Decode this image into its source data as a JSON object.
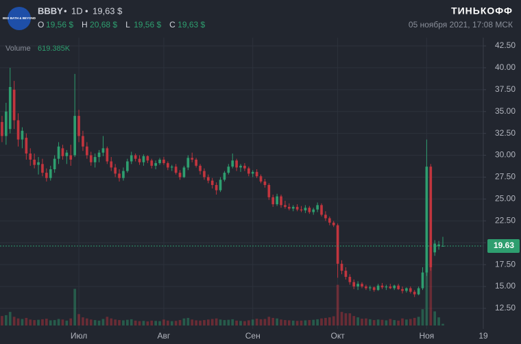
{
  "chart_data": {
    "type": "candlestick",
    "symbol": "BBBY",
    "interval": "1D",
    "last_label": "19,63 $",
    "logo_text": "BED BATH & BEYOND",
    "ohlc_readout": [
      {
        "key": "O",
        "label": "19,56 $"
      },
      {
        "key": "H",
        "label": "20,68 $"
      },
      {
        "key": "L",
        "label": "19,56 $"
      },
      {
        "key": "C",
        "label": "19,63 $"
      }
    ],
    "brand": "ТИНЬКОФФ",
    "timestamp": "05 ноября 2021, 17:08 МСК",
    "volume_name": "Volume",
    "volume_label": "619.385K",
    "up_color": "#2e9e6f",
    "down_color": "#c2353e",
    "last_price": 19.63,
    "xlim": [
      -0.5,
      119
    ],
    "ylim": [
      10.54,
      43.44
    ],
    "vlim": [
      0,
      106000
    ],
    "xticks": [
      {
        "value": 19,
        "label": "Июл"
      },
      {
        "value": 40,
        "label": "Авг"
      },
      {
        "value": 62,
        "label": "Сен"
      },
      {
        "value": 83,
        "label": "Окт"
      },
      {
        "value": 105,
        "label": "Ноя"
      },
      {
        "value": 119,
        "label": "19"
      }
    ],
    "yticks": [
      {
        "value": 12.5,
        "label": "12.50"
      },
      {
        "value": 15,
        "label": "15.00"
      },
      {
        "value": 17.5,
        "label": "17.50"
      },
      {
        "value": 20,
        "label": "20.00"
      },
      {
        "value": 22.5,
        "label": "22.50"
      },
      {
        "value": 25,
        "label": "25.00"
      },
      {
        "value": 27.5,
        "label": "27.50"
      },
      {
        "value": 30,
        "label": "30.00"
      },
      {
        "value": 32.5,
        "label": "32.50"
      },
      {
        "value": 35,
        "label": "35.00"
      },
      {
        "value": 37.5,
        "label": "37.50"
      },
      {
        "value": 40,
        "label": "40.00"
      },
      {
        "value": 42.5,
        "label": "42.50"
      }
    ],
    "grid": true,
    "ohlc": [
      [
        33.8,
        34.5,
        31.5,
        32.2
      ],
      [
        32.2,
        36.0,
        31.2,
        35.0
      ],
      [
        33.0,
        40.0,
        32.5,
        37.8
      ],
      [
        37.5,
        38.5,
        33.0,
        34.0
      ],
      [
        34.0,
        34.8,
        31.0,
        31.8
      ],
      [
        31.8,
        33.2,
        30.8,
        32.8
      ],
      [
        32.0,
        32.5,
        29.5,
        30.2
      ],
      [
        30.2,
        30.8,
        28.8,
        29.5
      ],
      [
        29.5,
        30.2,
        28.5,
        28.9
      ],
      [
        28.9,
        29.8,
        27.8,
        29.2
      ],
      [
        29.0,
        29.6,
        27.6,
        28.0
      ],
      [
        28.0,
        28.5,
        27.0,
        27.4
      ],
      [
        27.4,
        28.8,
        27.1,
        28.4
      ],
      [
        28.4,
        30.0,
        28.0,
        29.6
      ],
      [
        29.6,
        31.5,
        29.0,
        31.0
      ],
      [
        30.8,
        31.2,
        29.5,
        29.9
      ],
      [
        29.9,
        30.6,
        29.0,
        30.3
      ],
      [
        30.0,
        31.2,
        28.8,
        29.5
      ],
      [
        30.0,
        39.3,
        29.8,
        34.5
      ],
      [
        34.5,
        35.2,
        31.5,
        32.2
      ],
      [
        32.2,
        32.8,
        30.5,
        31.0
      ],
      [
        31.0,
        31.5,
        29.6,
        30.0
      ],
      [
        30.0,
        30.4,
        28.8,
        29.2
      ],
      [
        29.2,
        30.2,
        28.6,
        29.8
      ],
      [
        29.8,
        30.6,
        29.2,
        30.3
      ],
      [
        30.3,
        32.2,
        29.9,
        30.8
      ],
      [
        30.8,
        31.0,
        29.0,
        29.3
      ],
      [
        29.3,
        29.8,
        28.2,
        28.6
      ],
      [
        28.6,
        29.0,
        27.5,
        27.9
      ],
      [
        27.9,
        28.4,
        27.0,
        27.4
      ],
      [
        27.4,
        28.6,
        27.1,
        28.2
      ],
      [
        28.2,
        29.6,
        28.0,
        29.3
      ],
      [
        29.3,
        30.4,
        29.0,
        30.0
      ],
      [
        30.0,
        30.2,
        29.3,
        29.6
      ],
      [
        29.6,
        30.0,
        28.9,
        29.2
      ],
      [
        29.2,
        30.1,
        28.8,
        29.9
      ],
      [
        29.9,
        30.0,
        29.1,
        29.4
      ],
      [
        29.4,
        29.6,
        28.5,
        28.8
      ],
      [
        28.8,
        29.4,
        28.4,
        29.1
      ],
      [
        29.1,
        29.7,
        28.9,
        29.5
      ],
      [
        29.5,
        29.8,
        28.9,
        29.1
      ],
      [
        29.1,
        29.3,
        28.3,
        28.6
      ],
      [
        28.6,
        28.9,
        28.2,
        28.7
      ],
      [
        28.7,
        29.0,
        27.8,
        28.0
      ],
      [
        28.0,
        28.3,
        27.2,
        27.5
      ],
      [
        27.5,
        28.8,
        27.4,
        28.6
      ],
      [
        28.6,
        30.0,
        28.3,
        29.7
      ],
      [
        29.7,
        30.3,
        29.2,
        29.5
      ],
      [
        29.5,
        29.7,
        28.6,
        28.8
      ],
      [
        28.8,
        29.0,
        27.8,
        28.2
      ],
      [
        28.2,
        28.5,
        27.2,
        27.5
      ],
      [
        27.5,
        27.8,
        26.8,
        27.1
      ],
      [
        27.1,
        27.4,
        26.2,
        26.6
      ],
      [
        26.6,
        26.9,
        25.5,
        26.0
      ],
      [
        26.0,
        27.5,
        25.8,
        27.2
      ],
      [
        27.2,
        28.2,
        27.0,
        28.0
      ],
      [
        28.0,
        29.0,
        27.8,
        28.7
      ],
      [
        28.7,
        30.2,
        28.5,
        29.4
      ],
      [
        29.4,
        29.6,
        28.2,
        28.6
      ],
      [
        28.6,
        29.0,
        28.1,
        28.8
      ],
      [
        28.8,
        29.1,
        28.2,
        28.5
      ],
      [
        28.5,
        28.7,
        27.6,
        27.9
      ],
      [
        27.9,
        28.3,
        27.5,
        28.1
      ],
      [
        28.1,
        28.4,
        27.4,
        27.6
      ],
      [
        27.6,
        27.8,
        26.8,
        27.0
      ],
      [
        27.0,
        27.3,
        26.3,
        26.6
      ],
      [
        26.6,
        26.8,
        24.9,
        25.2
      ],
      [
        25.2,
        25.5,
        24.1,
        24.4
      ],
      [
        24.4,
        25.6,
        24.2,
        25.3
      ],
      [
        25.3,
        25.5,
        24.0,
        24.3
      ],
      [
        24.3,
        24.8,
        23.9,
        24.1
      ],
      [
        24.1,
        24.5,
        23.7,
        23.9
      ],
      [
        23.9,
        24.3,
        23.6,
        24.1
      ],
      [
        24.1,
        24.4,
        23.6,
        23.8
      ],
      [
        23.8,
        24.2,
        23.5,
        23.7
      ],
      [
        23.7,
        24.3,
        23.4,
        24.0
      ],
      [
        24.0,
        24.2,
        23.3,
        23.5
      ],
      [
        23.5,
        24.0,
        23.2,
        23.8
      ],
      [
        23.8,
        24.6,
        23.5,
        24.3
      ],
      [
        24.3,
        24.5,
        23.0,
        23.2
      ],
      [
        23.2,
        23.6,
        22.5,
        22.8
      ],
      [
        22.8,
        23.0,
        22.0,
        22.3
      ],
      [
        22.3,
        22.5,
        21.8,
        22.0
      ],
      [
        22.0,
        22.2,
        16.0,
        17.6
      ],
      [
        17.6,
        18.0,
        16.4,
        16.8
      ],
      [
        16.8,
        17.2,
        15.8,
        16.1
      ],
      [
        16.1,
        16.4,
        15.2,
        15.5
      ],
      [
        15.5,
        15.8,
        14.7,
        15.0
      ],
      [
        15.0,
        15.6,
        14.6,
        15.3
      ],
      [
        15.3,
        15.5,
        14.8,
        15.0
      ],
      [
        15.0,
        15.2,
        14.6,
        14.8
      ],
      [
        14.8,
        15.1,
        14.5,
        14.9
      ],
      [
        14.9,
        15.0,
        14.4,
        14.6
      ],
      [
        14.6,
        15.3,
        14.5,
        15.1
      ],
      [
        15.1,
        15.4,
        14.7,
        14.9
      ],
      [
        14.9,
        15.2,
        14.6,
        15.0
      ],
      [
        15.0,
        15.3,
        14.7,
        14.8
      ],
      [
        14.8,
        15.2,
        14.6,
        15.1
      ],
      [
        15.1,
        15.3,
        14.6,
        14.7
      ],
      [
        14.7,
        15.0,
        14.2,
        14.5
      ],
      [
        14.5,
        14.9,
        14.3,
        14.8
      ],
      [
        14.8,
        15.0,
        14.2,
        14.4
      ],
      [
        14.4,
        14.6,
        13.8,
        14.1
      ],
      [
        14.1,
        15.0,
        14.0,
        14.8
      ],
      [
        14.8,
        17.2,
        14.6,
        16.6
      ],
      [
        16.6,
        31.8,
        16.2,
        28.7
      ],
      [
        28.7,
        29.0,
        16.8,
        17.2
      ],
      [
        18.9,
        20.3,
        18.5,
        19.9
      ],
      [
        19.6,
        20.2,
        19.2,
        19.8
      ],
      [
        19.56,
        20.68,
        19.56,
        19.63
      ]
    ],
    "volume": [
      3500,
      3800,
      5000,
      3200,
      2600,
      2400,
      2800,
      2200,
      2000,
      2100,
      2300,
      2500,
      1900,
      2000,
      2400,
      2200,
      1800,
      2600,
      13500,
      4200,
      3000,
      2600,
      2200,
      2000,
      1800,
      2400,
      3200,
      2600,
      2200,
      2000,
      1900,
      2100,
      2300,
      1800,
      1600,
      1700,
      1500,
      1800,
      1700,
      1600,
      2200,
      1800,
      1600,
      1700,
      2000,
      2600,
      2800,
      2200,
      1900,
      1800,
      2000,
      2200,
      2400,
      2600,
      2200,
      2000,
      2100,
      2300,
      1800,
      1700,
      1600,
      1900,
      2200,
      2500,
      2300,
      2400,
      3200,
      2800,
      2600,
      2200,
      2000,
      1900,
      1800,
      1700,
      1800,
      1900,
      2000,
      2100,
      2300,
      2600,
      2800,
      3000,
      3400,
      15000,
      5000,
      4500,
      4500,
      3500,
      3000,
      2500,
      2600,
      2300,
      2000,
      2200,
      2100,
      1900,
      2400,
      2000,
      1800,
      2600,
      2200,
      2400,
      2800,
      3200,
      6000,
      24000,
      30000,
      5200,
      3000,
      619.385
    ]
  }
}
